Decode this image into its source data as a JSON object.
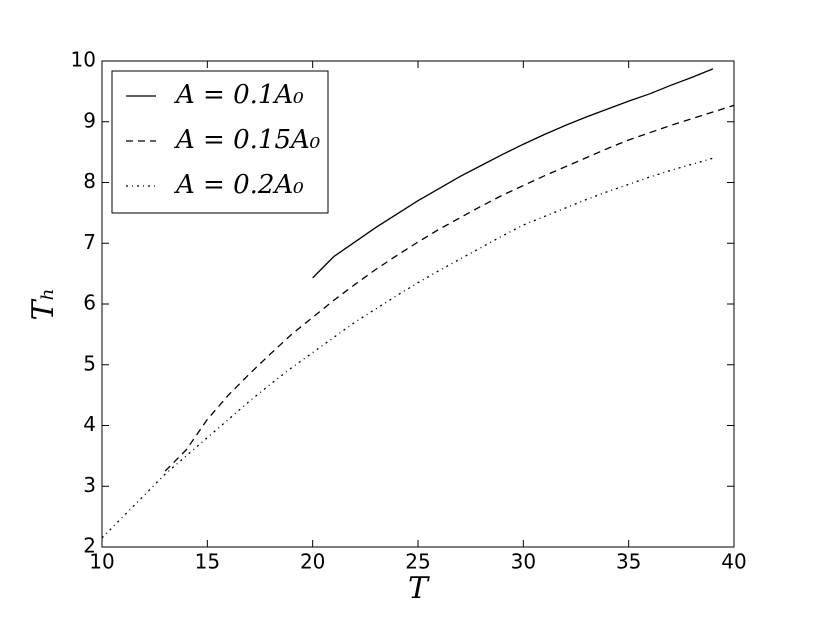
{
  "chart_data": {
    "type": "line",
    "xlabel": "T",
    "ylabel": "Tₕ",
    "xlim": [
      10,
      40
    ],
    "ylim": [
      2,
      10
    ],
    "xticks": [
      10,
      15,
      20,
      25,
      30,
      35,
      40
    ],
    "yticks": [
      2,
      3,
      4,
      5,
      6,
      7,
      8,
      9,
      10
    ],
    "legend": "upper left",
    "series": [
      {
        "name": "A = 0.1A₀",
        "color": "#000000",
        "linestyle": "solid",
        "x": [
          20,
          21,
          22,
          23,
          24,
          25,
          26,
          27,
          28,
          29,
          30,
          31,
          32,
          33,
          34,
          35,
          36,
          37,
          38,
          39
        ],
        "values": [
          6.43,
          6.78,
          7.02,
          7.26,
          7.48,
          7.7,
          7.9,
          8.1,
          8.28,
          8.46,
          8.63,
          8.79,
          8.94,
          9.08,
          9.21,
          9.34,
          9.46,
          9.6,
          9.73,
          9.87
        ]
      },
      {
        "name": "A = 0.15A₀",
        "color": "#000000",
        "linestyle": "dashed",
        "x": [
          13,
          14,
          15,
          16,
          17,
          18,
          19,
          20,
          21,
          22,
          23,
          24,
          25,
          26,
          27,
          28,
          29,
          30,
          31,
          32,
          33,
          34,
          35,
          36,
          37,
          38,
          39,
          40
        ],
        "values": [
          3.25,
          3.6,
          4.1,
          4.5,
          4.85,
          5.18,
          5.5,
          5.78,
          6.06,
          6.32,
          6.57,
          6.8,
          7.02,
          7.23,
          7.42,
          7.61,
          7.79,
          7.95,
          8.11,
          8.26,
          8.41,
          8.56,
          8.7,
          8.82,
          8.94,
          9.05,
          9.16,
          9.27
        ]
      },
      {
        "name": "A = 0.2A₀",
        "color": "#000000",
        "linestyle": "dashdot",
        "x": [
          10,
          11,
          12,
          13,
          14,
          15,
          16,
          17,
          18,
          19,
          20,
          21,
          22,
          23,
          24,
          25,
          26,
          27,
          28,
          29,
          30,
          31,
          32,
          33,
          34,
          35,
          36,
          37,
          38,
          39
        ],
        "values": [
          2.15,
          2.5,
          2.85,
          3.2,
          3.5,
          3.8,
          4.1,
          4.4,
          4.68,
          4.95,
          5.2,
          5.45,
          5.7,
          5.92,
          6.14,
          6.35,
          6.55,
          6.74,
          6.93,
          7.12,
          7.3,
          7.44,
          7.58,
          7.72,
          7.85,
          7.97,
          8.09,
          8.2,
          8.3,
          8.4
        ]
      }
    ]
  }
}
